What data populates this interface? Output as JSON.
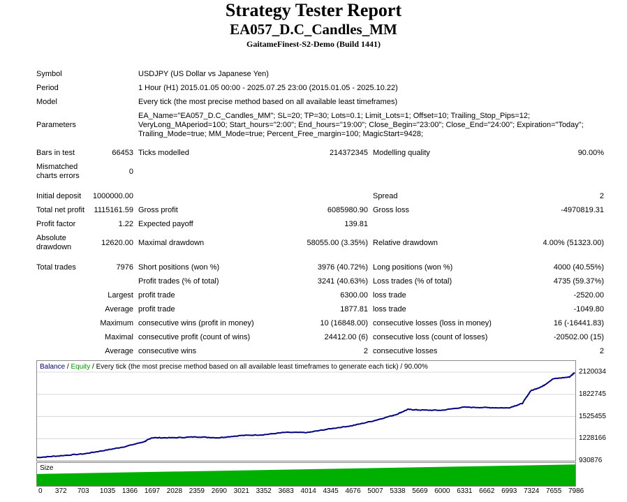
{
  "header": {
    "title": "Strategy Tester Report",
    "ea_name": "EA057_D.C_Candles_MM",
    "server": "GaitameFinest-S2-Demo (Build 1441)"
  },
  "info": {
    "symbol_label": "Symbol",
    "symbol_value": "USDJPY (US Dollar vs Japanese Yen)",
    "period_label": "Period",
    "period_value": "1 Hour (H1) 2015.01.05 00:00 - 2025.07.25 23:00 (2015.01.05 - 2025.10.22)",
    "model_label": "Model",
    "model_value": "Every tick (the most precise method based on all available least timeframes)",
    "parameters_label": "Parameters",
    "parameters_lines": [
      "EA_Name=\"EA057_D.C_Candles_MM\"; SL=20; TP=30; Lots=0.1; Limit_Lots=1; Offset=10; Trailing_Stop_Pips=12;",
      "VeryLong_MAperiod=100; Start_hours=\"2:00\"; End_hours=\"19:00\"; Close_Begin=\"23:00\"; Close_End=\"24:00\"; Expiration=\"Today\";",
      "Trailing_Mode=true; MM_Mode=true; Percent_Free_margin=100; MagicStart=9428;"
    ]
  },
  "stats": {
    "bars_label": "Bars in test",
    "bars_value": "66453",
    "ticks_label": "Ticks modelled",
    "ticks_value": "214372345",
    "quality_label": "Modelling quality",
    "quality_value": "90.00%",
    "mismatch_label_1": "Mismatched",
    "mismatch_label_2": "charts errors",
    "mismatch_value": "0",
    "deposit_label": "Initial deposit",
    "deposit_value": "1000000.00",
    "spread_label": "Spread",
    "spread_value": "2",
    "net_label": "Total net profit",
    "net_value": "1115161.59",
    "gross_profit_label": "Gross profit",
    "gross_profit_value": "6085980.90",
    "gross_loss_label": "Gross loss",
    "gross_loss_value": "-4970819.31",
    "pf_label": "Profit factor",
    "pf_value": "1.22",
    "ep_label": "Expected payoff",
    "ep_value": "139.81",
    "abs_dd_label_1": "Absolute",
    "abs_dd_label_2": "drawdown",
    "abs_dd_value": "12620.00",
    "max_dd_label": "Maximal drawdown",
    "max_dd_value": "58055.00 (3.35%)",
    "rel_dd_label": "Relative drawdown",
    "rel_dd_value": "4.00% (51323.00)",
    "trades_label": "Total trades",
    "trades_value": "7976",
    "short_label": "Short positions (won %)",
    "short_value": "3976 (40.72%)",
    "long_label": "Long positions (won %)",
    "long_value": "4000 (40.55%)",
    "ptrades_label": "Profit trades (% of total)",
    "ptrades_value": "3241 (40.63%)",
    "ltrades_label": "Loss trades (% of total)",
    "ltrades_value": "4735 (59.37%)",
    "largest_label": "Largest",
    "largest_pt_label": "profit trade",
    "largest_pt_value": "6300.00",
    "largest_lt_label": "loss trade",
    "largest_lt_value": "-2520.00",
    "average_label": "Average",
    "average_pt_label": "profit trade",
    "average_pt_value": "1877.81",
    "average_lt_label": "loss trade",
    "average_lt_value": "-1049.80",
    "maximum_label": "Maximum",
    "max_cw_label": "consecutive wins (profit in money)",
    "max_cw_value": "10 (16848.00)",
    "max_cl_label": "consecutive losses (loss in money)",
    "max_cl_value": "16 (-16441.83)",
    "maximal_label": "Maximal",
    "mx_cp_label": "consecutive profit (count of wins)",
    "mx_cp_value": "24412.00 (6)",
    "mx_cl_label": "consecutive loss (count of losses)",
    "mx_cl_value": "-20502.00 (15)",
    "average2_label": "Average",
    "avg_cw_label": "consecutive wins",
    "avg_cw_value": "2",
    "avg_cl_label": "consecutive losses",
    "avg_cl_value": "2"
  },
  "chart_legend": {
    "balance": "Balance",
    "sep": " / ",
    "equity": "Equity",
    "rest": " / Every tick (the most precise method based on all available least timeframes to generate each tick) / 90.00%"
  },
  "size_label": "Size",
  "chart_data": {
    "type": "line",
    "series": [
      {
        "name": "Balance",
        "color": "#000080"
      },
      {
        "name": "Equity",
        "color": "#008000"
      }
    ],
    "balance_curve": {
      "x": [
        0,
        300,
        700,
        1000,
        1300,
        1600,
        1700,
        2028,
        2359,
        2690,
        3021,
        3352,
        3683,
        4014,
        4345,
        4676,
        5007,
        5338,
        5500,
        5669,
        6000,
        6331,
        6662,
        6993,
        7200,
        7324,
        7500,
        7655,
        7900,
        7976
      ],
      "y": [
        975000,
        995000,
        1025000,
        1070000,
        1120000,
        1190000,
        1240000,
        1240000,
        1252000,
        1240000,
        1270000,
        1280000,
        1312000,
        1310000,
        1360000,
        1402000,
        1470000,
        1555000,
        1620000,
        1612000,
        1608000,
        1650000,
        1645000,
        1640000,
        1700000,
        1870000,
        1930000,
        2030000,
        2055000,
        2115000
      ]
    },
    "y_ticks": [
      "2120034",
      "1822745",
      "1525455",
      "1228166",
      "930876"
    ],
    "y_range": [
      930876,
      2120034
    ],
    "x_ticks": [
      "0",
      "372",
      "703",
      "1035",
      "1366",
      "1697",
      "2028",
      "2359",
      "2690",
      "3021",
      "3352",
      "3683",
      "4014",
      "4345",
      "4676",
      "5007",
      "5338",
      "5669",
      "6000",
      "6331",
      "6662",
      "6993",
      "7324",
      "7655",
      "7986"
    ],
    "x_range": [
      0,
      7986
    ],
    "size_bar": {
      "start_fraction": 0.52,
      "end_fraction": 0.93,
      "color": "#00b000"
    }
  }
}
